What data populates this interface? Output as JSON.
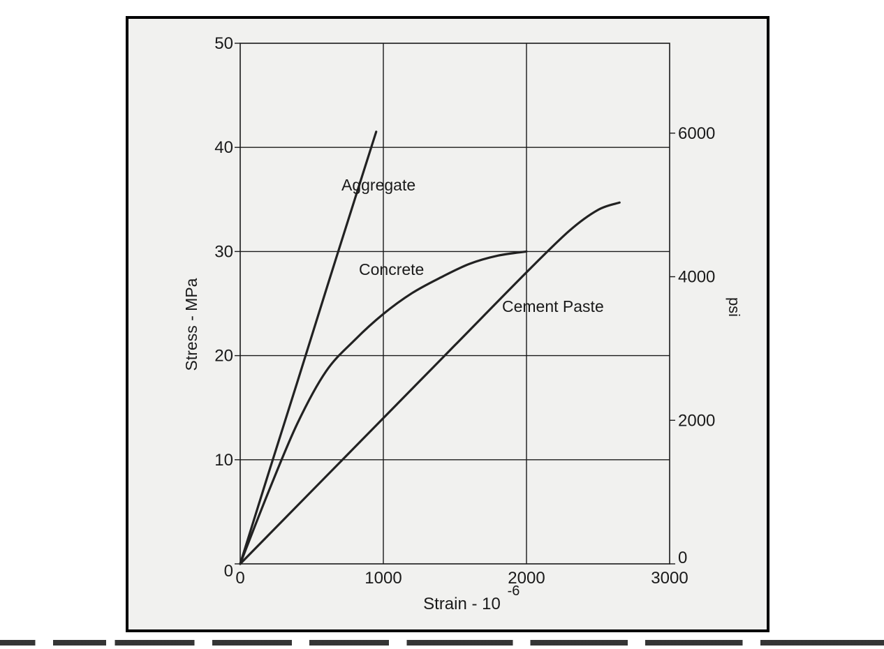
{
  "chart_data": {
    "type": "line",
    "xlabel": "Strain - 10",
    "xlabel_superscript": "-6",
    "ylabel": "Stress - MPa",
    "y2label": "psi",
    "xlim": [
      0,
      3000
    ],
    "ylim": [
      0,
      50
    ],
    "y2lim_psi": [
      0,
      7252
    ],
    "x_ticks": [
      "0",
      "1000",
      "2000",
      "3000"
    ],
    "y_ticks": [
      "0",
      "10",
      "20",
      "30",
      "40",
      "50"
    ],
    "y2_ticks": [
      "0",
      "2000",
      "4000",
      "6000"
    ],
    "grid": true,
    "series": [
      {
        "name": "Aggregate",
        "x": [
          0,
          200,
          400,
          600,
          800,
          950
        ],
        "y": [
          0,
          8.8,
          17.5,
          26.3,
          35,
          41.5
        ]
      },
      {
        "name": "Concrete",
        "x": [
          0,
          200,
          400,
          600,
          800,
          1000,
          1200,
          1400,
          1600,
          1800,
          2000
        ],
        "y": [
          0,
          7,
          13.5,
          18.5,
          21.5,
          24,
          26,
          27.5,
          28.8,
          29.6,
          30
        ]
      },
      {
        "name": "Cement Paste",
        "x": [
          0,
          500,
          1000,
          1500,
          2000,
          2300,
          2500,
          2650
        ],
        "y": [
          0,
          7,
          14,
          21,
          28,
          32,
          34,
          34.7
        ]
      }
    ]
  }
}
